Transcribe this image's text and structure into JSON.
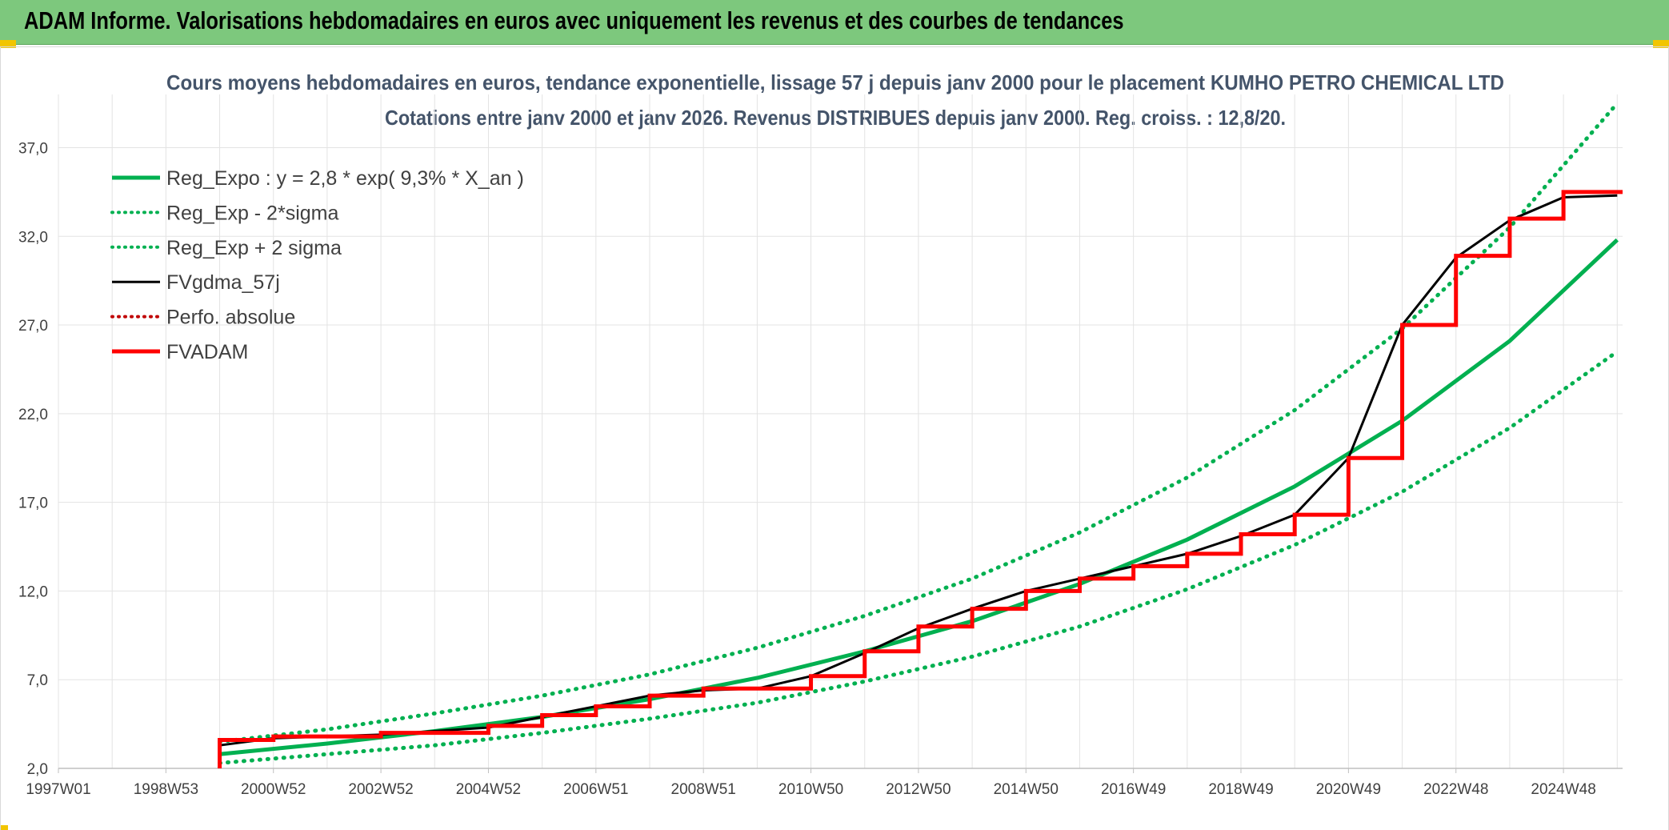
{
  "header": {
    "title": "ADAM Informe. Valorisations hebdomadaires en euros avec uniquement les revenus et des courbes de tendances"
  },
  "chart_data": {
    "type": "line",
    "title_line1": "Cours moyens hebdomadaires en euros, tendance exponentielle, lissage 57 j depuis janv 2000 pour le placement KUMHO PETRO CHEMICAL LTD",
    "title_line2": "Cotations entre janv 2000 et janv 2026. Revenus DISTRIBUES depuis janv 2000. Reg. croiss. : 12,8/20.",
    "x_tick_labels": [
      "1997W01",
      "1998W53",
      "2000W52",
      "2002W52",
      "2004W52",
      "2006W51",
      "2008W51",
      "2010W50",
      "2012W50",
      "2014W50",
      "2016W49",
      "2018W49",
      "2020W49",
      "2022W48",
      "2024W48"
    ],
    "x_tick_years": [
      1997,
      1999,
      2001,
      2003,
      2005,
      2007,
      2009,
      2011,
      2013,
      2015,
      2017,
      2019,
      2021,
      2023,
      2025
    ],
    "xlim": [
      1997,
      2026.1
    ],
    "ylim": [
      2,
      40
    ],
    "y_ticks": [
      2,
      7,
      12,
      17,
      22,
      27,
      32,
      37
    ],
    "y_tick_labels": [
      "2,0",
      "7,0",
      "12,0",
      "17,0",
      "22,0",
      "27,0",
      "32,0",
      "37,0"
    ],
    "grid": true,
    "legend_position": "top-left",
    "colors": {
      "trend": "#00b050",
      "smooth": "#000000",
      "adam": "#ff0000",
      "perf": "#c00000"
    },
    "series": [
      {
        "name": "Reg_Expo : y = 2,8 * exp( 9,3% *  X_an )",
        "style": "solid",
        "color": "#00b050",
        "x": [
          2000.0,
          2002.0,
          2004.0,
          2006.0,
          2008.0,
          2010.0,
          2012.0,
          2014.0,
          2016.0,
          2018.0,
          2020.0,
          2022.0,
          2024.0,
          2026.0
        ],
        "y": [
          2.8,
          3.4,
          4.1,
          4.9,
          5.9,
          7.1,
          8.6,
          10.3,
          12.4,
          14.9,
          17.9,
          21.6,
          26.1,
          31.8
        ]
      },
      {
        "name": "Reg_Exp - 2*sigma",
        "style": "dotted",
        "color": "#00b050",
        "x": [
          2000.0,
          2002.0,
          2004.0,
          2006.0,
          2008.0,
          2010.0,
          2012.0,
          2014.0,
          2016.0,
          2018.0,
          2020.0,
          2022.0,
          2024.0,
          2026.0
        ],
        "y": [
          2.3,
          2.8,
          3.3,
          4.0,
          4.8,
          5.7,
          6.9,
          8.3,
          10.0,
          12.1,
          14.6,
          17.6,
          21.2,
          25.5
        ]
      },
      {
        "name": "Reg_Exp + 2 sigma",
        "style": "dotted",
        "color": "#00b050",
        "x": [
          2000.0,
          2002.0,
          2004.0,
          2006.0,
          2008.0,
          2010.0,
          2012.0,
          2014.0,
          2016.0,
          2018.0,
          2020.0,
          2022.0,
          2024.0,
          2026.0
        ],
        "y": [
          3.5,
          4.2,
          5.1,
          6.1,
          7.3,
          8.8,
          10.6,
          12.7,
          15.3,
          18.4,
          22.2,
          26.8,
          32.5,
          39.5
        ]
      },
      {
        "name": "FVgdma_57j",
        "style": "solid",
        "color": "#000000",
        "x": [
          2000.0,
          2001.0,
          2003.0,
          2005.0,
          2006.0,
          2007.0,
          2008.0,
          2009.0,
          2010.0,
          2011.0,
          2012.0,
          2013.0,
          2014.0,
          2015.0,
          2016.0,
          2017.0,
          2018.0,
          2019.0,
          2020.0,
          2021.0,
          2022.0,
          2023.0,
          2024.0,
          2025.0,
          2026.0
        ],
        "y": [
          3.3,
          3.7,
          3.9,
          4.3,
          4.9,
          5.5,
          6.1,
          6.4,
          6.5,
          7.2,
          8.5,
          9.9,
          11.0,
          12.0,
          12.7,
          13.4,
          14.1,
          15.1,
          16.3,
          19.5,
          27.0,
          30.8,
          32.9,
          34.2,
          34.3
        ]
      },
      {
        "name": "Perfo. absolue",
        "style": "dotted",
        "color": "#c00000",
        "x": [],
        "y": []
      },
      {
        "name": "FVADAM",
        "style": "step",
        "color": "#ff0000",
        "x": [
          2000.0,
          2001.0,
          2003.0,
          2005.0,
          2006.0,
          2007.0,
          2008.0,
          2009.0,
          2010.0,
          2011.0,
          2012.0,
          2013.0,
          2014.0,
          2015.0,
          2016.0,
          2017.0,
          2018.0,
          2019.0,
          2020.0,
          2021.0,
          2022.0,
          2023.0,
          2024.0,
          2025.0,
          2026.1
        ],
        "y": [
          3.6,
          3.8,
          4.0,
          4.4,
          5.0,
          5.5,
          6.1,
          6.5,
          6.5,
          7.2,
          8.6,
          10.0,
          11.0,
          12.0,
          12.7,
          13.4,
          14.1,
          15.2,
          16.3,
          19.5,
          27.0,
          30.9,
          33.0,
          34.5,
          34.5
        ]
      }
    ]
  }
}
